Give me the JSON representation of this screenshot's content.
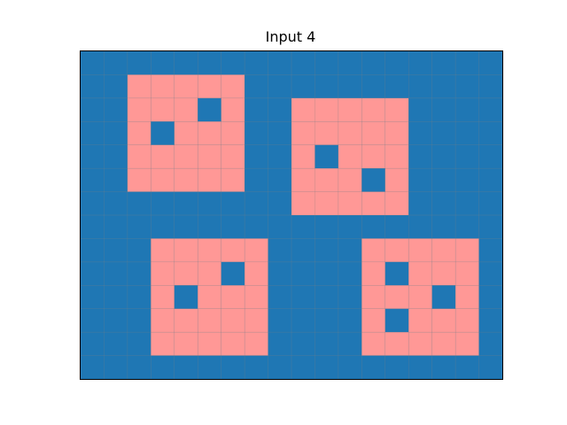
{
  "figure": {
    "title": "Input 4"
  },
  "grid": {
    "rows": 14,
    "cols": 18,
    "background_value": 0,
    "fill_value": 1,
    "palette": {
      "0": "#1f77b4",
      "1": "#ff9896"
    },
    "gridline_color": "#808080",
    "cells": [
      [
        0,
        0,
        0,
        0,
        0,
        0,
        0,
        0,
        0,
        0,
        0,
        0,
        0,
        0,
        0,
        0,
        0,
        0
      ],
      [
        0,
        0,
        1,
        1,
        1,
        1,
        1,
        0,
        0,
        0,
        0,
        0,
        0,
        0,
        0,
        0,
        0,
        0
      ],
      [
        0,
        0,
        1,
        1,
        1,
        0,
        1,
        0,
        0,
        1,
        1,
        1,
        1,
        1,
        0,
        0,
        0,
        0
      ],
      [
        0,
        0,
        1,
        0,
        1,
        1,
        1,
        0,
        0,
        1,
        1,
        1,
        1,
        1,
        0,
        0,
        0,
        0
      ],
      [
        0,
        0,
        1,
        1,
        1,
        1,
        1,
        0,
        0,
        1,
        0,
        1,
        1,
        1,
        0,
        0,
        0,
        0
      ],
      [
        0,
        0,
        1,
        1,
        1,
        1,
        1,
        0,
        0,
        1,
        1,
        1,
        0,
        1,
        0,
        0,
        0,
        0
      ],
      [
        0,
        0,
        0,
        0,
        0,
        0,
        0,
        0,
        0,
        1,
        1,
        1,
        1,
        1,
        0,
        0,
        0,
        0
      ],
      [
        0,
        0,
        0,
        0,
        0,
        0,
        0,
        0,
        0,
        0,
        0,
        0,
        0,
        0,
        0,
        0,
        0,
        0
      ],
      [
        0,
        0,
        0,
        1,
        1,
        1,
        1,
        1,
        0,
        0,
        0,
        0,
        1,
        1,
        1,
        1,
        1,
        0
      ],
      [
        0,
        0,
        0,
        1,
        1,
        1,
        0,
        1,
        0,
        0,
        0,
        0,
        1,
        0,
        1,
        1,
        1,
        0
      ],
      [
        0,
        0,
        0,
        1,
        0,
        1,
        1,
        1,
        0,
        0,
        0,
        0,
        1,
        1,
        1,
        0,
        1,
        0
      ],
      [
        0,
        0,
        0,
        1,
        1,
        1,
        1,
        1,
        0,
        0,
        0,
        0,
        1,
        0,
        1,
        1,
        1,
        0
      ],
      [
        0,
        0,
        0,
        1,
        1,
        1,
        1,
        1,
        0,
        0,
        0,
        0,
        1,
        1,
        1,
        1,
        1,
        0
      ],
      [
        0,
        0,
        0,
        0,
        0,
        0,
        0,
        0,
        0,
        0,
        0,
        0,
        0,
        0,
        0,
        0,
        0,
        0
      ]
    ]
  }
}
